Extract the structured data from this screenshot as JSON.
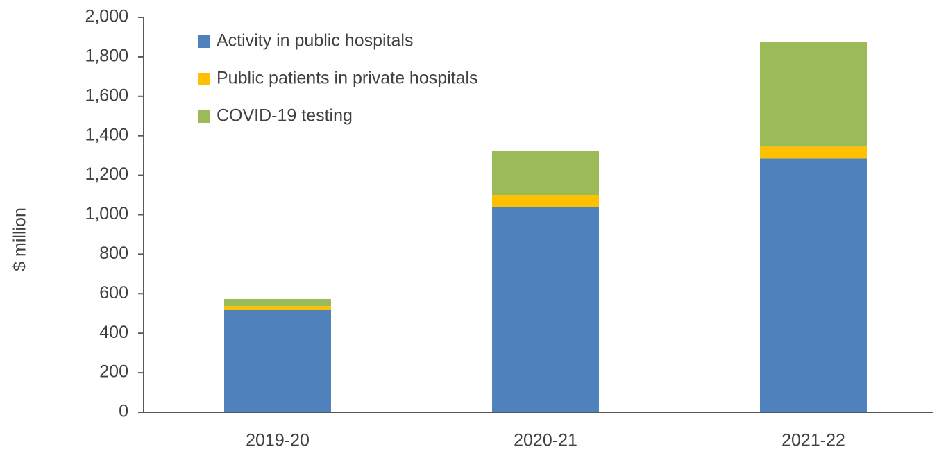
{
  "chart_data": {
    "type": "stacked_bar",
    "y_label": "$ million",
    "categories": [
      "2019-20",
      "2020-21",
      "2021-22"
    ],
    "series": [
      {
        "name": "Activity in public hospitals",
        "color": "#4f81bd",
        "values": [
          520,
          1040,
          1285
        ]
      },
      {
        "name": "Public patients in private hospitals",
        "color": "#ffc000",
        "values": [
          17,
          60,
          60
        ]
      },
      {
        "name": "COVID-19 testing",
        "color": "#9bbb59",
        "values": [
          36,
          225,
          530
        ]
      }
    ],
    "ylim": [
      0,
      2000
    ],
    "yticks": [
      0,
      200,
      400,
      600,
      800,
      {
        "value": 1000,
        "label": "1,000"
      },
      {
        "value": 1200,
        "label": "1,200"
      },
      {
        "value": 1400,
        "label": "1,400"
      },
      {
        "value": 1600,
        "label": "1,600"
      },
      {
        "value": 1800,
        "label": "1,800"
      },
      {
        "value": 2000,
        "label": "2,000"
      }
    ],
    "legend": "top-left"
  }
}
